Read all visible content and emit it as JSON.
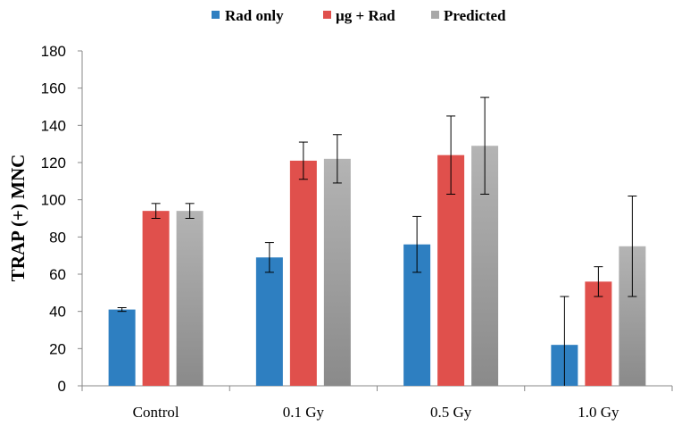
{
  "chart_data": {
    "type": "bar",
    "title": "",
    "xlabel": "",
    "ylabel": "TRAP (+) MNC",
    "ylim": [
      0,
      180
    ],
    "yticks": [
      0,
      20,
      40,
      60,
      80,
      100,
      120,
      140,
      160,
      180
    ],
    "grid": false,
    "legend_position": "top",
    "categories": [
      "Control",
      "0.1 Gy",
      "0.5 Gy",
      "1.0 Gy"
    ],
    "series": [
      {
        "name": "Rad only",
        "color": "#2E7FC1",
        "values": [
          41,
          69,
          76,
          22
        ],
        "errors": [
          1,
          8,
          15,
          26
        ]
      },
      {
        "name": "µg + Rad",
        "color": "#E0504C",
        "values": [
          94,
          121,
          124,
          56
        ],
        "errors": [
          4,
          10,
          21,
          8
        ]
      },
      {
        "name": "Predicted",
        "color": "#A8A8A8",
        "values": [
          94,
          122,
          129,
          75
        ],
        "errors": [
          4,
          13,
          26,
          27
        ]
      }
    ]
  }
}
